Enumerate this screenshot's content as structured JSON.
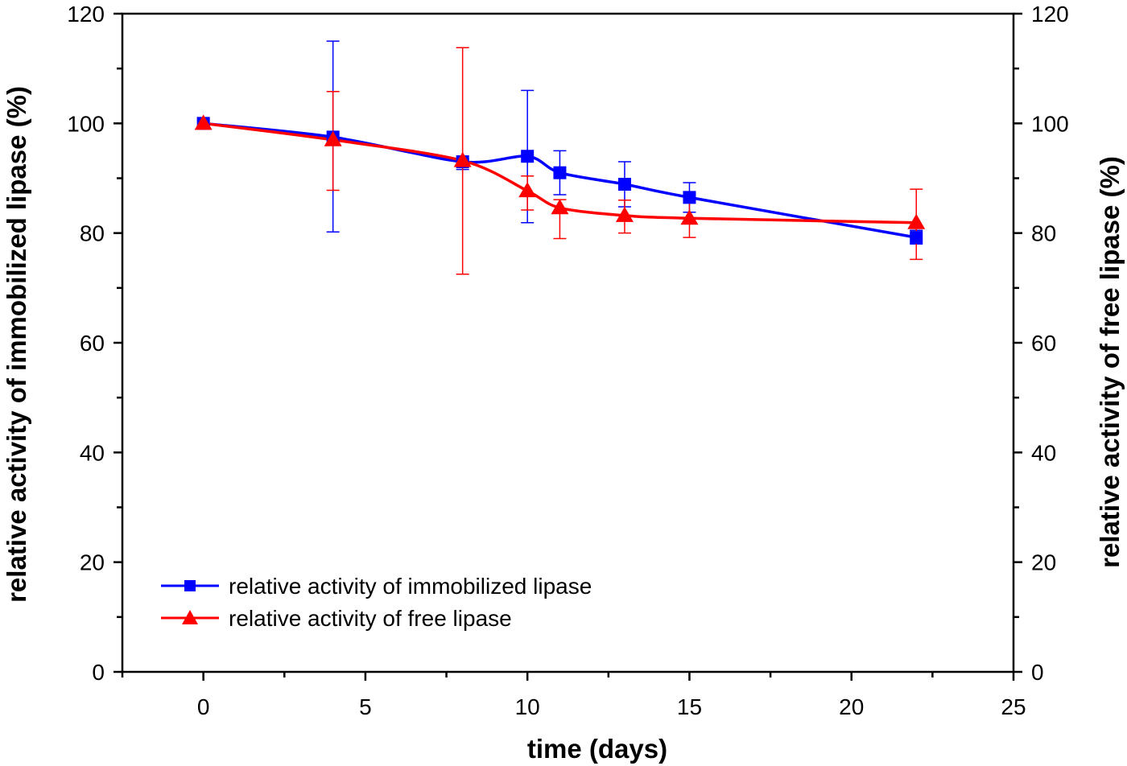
{
  "chart_data": {
    "type": "line",
    "title": "",
    "xlabel": "time (days)",
    "ylabel": "relative activity of immobilized lipase (%)",
    "y2label": "relative activity of free lipase (%)",
    "xlim": [
      -2.5,
      25
    ],
    "ylim": [
      0,
      120
    ],
    "y2lim": [
      0,
      120
    ],
    "xticks": [
      0,
      5,
      10,
      15,
      20,
      25
    ],
    "yticks": [
      0,
      20,
      40,
      60,
      80,
      100,
      120
    ],
    "grid": false,
    "legend_position": "bottom-left",
    "series": [
      {
        "name": "relative activity of immobilized lipase",
        "color": "#0000ff",
        "marker": "square",
        "x": [
          0,
          4,
          8,
          10,
          11,
          13,
          15,
          22
        ],
        "y": [
          100,
          97.5,
          93.0,
          94.0,
          91.0,
          88.9,
          86.5,
          79.2
        ],
        "err_upper": [
          100.5,
          115.0,
          93.5,
          106.0,
          95.0,
          93.0,
          89.2,
          80.5
        ],
        "err_lower": [
          99.5,
          80.2,
          91.6,
          81.9,
          87.0,
          84.8,
          83.8,
          78.0
        ]
      },
      {
        "name": "relative activity of free lipase",
        "color": "#ff0000",
        "marker": "triangle",
        "x": [
          0,
          4,
          8,
          10,
          11,
          13,
          15,
          22
        ],
        "y": [
          100,
          97.0,
          93.2,
          87.7,
          84.6,
          83.2,
          82.7,
          81.9
        ],
        "err_upper": [
          101,
          105.8,
          113.8,
          90.4,
          86.1,
          86.0,
          86.0,
          88.0
        ],
        "err_lower": [
          99,
          87.8,
          72.5,
          84.2,
          79.0,
          80.0,
          79.2,
          75.2
        ]
      }
    ]
  }
}
